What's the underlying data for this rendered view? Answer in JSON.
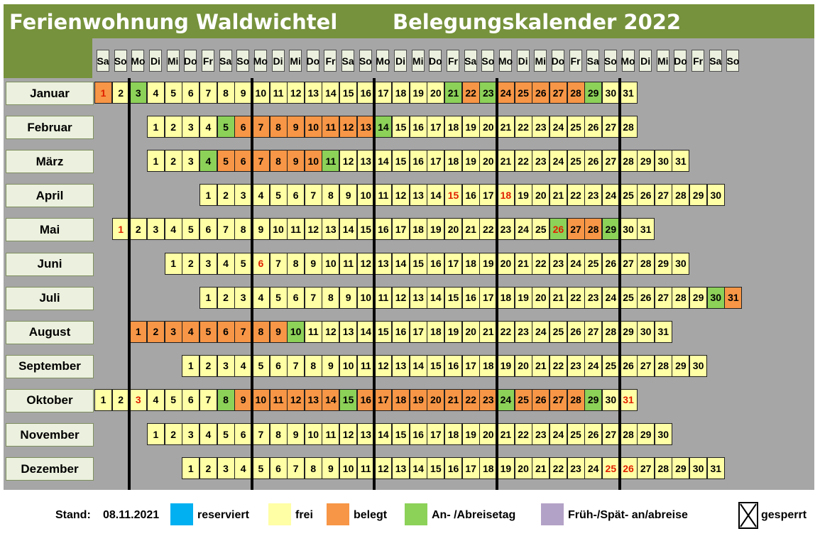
{
  "header": {
    "title_left": "Ferienwohnung Waldwichtel",
    "title_right": "Belegungskalender 2022"
  },
  "colors": {
    "header_bg": "#76923c",
    "frei": "#ffffa5",
    "belegt": "#f79646",
    "an_abreise": "#8cd158",
    "reserviert": "#00b0f0",
    "frueh_spaet": "#b3a2c7",
    "highlight_text": "#e02000"
  },
  "weekday_headers": [
    "Sa",
    "So",
    "Mo",
    "Di",
    "Mi",
    "Do",
    "Fr",
    "Sa",
    "So",
    "Mo",
    "Di",
    "Mi",
    "Do",
    "Fr",
    "Sa",
    "So",
    "Mo",
    "Di",
    "Mi",
    "Do",
    "Fr",
    "Sa",
    "So",
    "Mo",
    "Di",
    "Mi",
    "Do",
    "Fr",
    "Sa",
    "So",
    "Mo",
    "Di",
    "Mi",
    "Do",
    "Fr",
    "Sa",
    "So"
  ],
  "months": [
    {
      "name": "Januar",
      "start": 0,
      "days": 31,
      "belegt": [
        1,
        22,
        24,
        25,
        26,
        27,
        28
      ],
      "an": [
        3,
        21,
        23,
        29
      ],
      "red": [
        1
      ]
    },
    {
      "name": "Februar",
      "start": 3,
      "days": 28,
      "belegt": [
        6,
        7,
        8,
        9,
        10,
        11,
        12,
        13
      ],
      "an": [
        5,
        14
      ],
      "red": []
    },
    {
      "name": "März",
      "start": 3,
      "days": 31,
      "belegt": [
        5,
        6,
        7,
        8,
        9,
        10
      ],
      "an": [
        4,
        11
      ],
      "red": []
    },
    {
      "name": "April",
      "start": 6,
      "days": 30,
      "belegt": [],
      "an": [],
      "red": [
        15,
        18
      ]
    },
    {
      "name": "Mai",
      "start": 1,
      "days": 31,
      "belegt": [
        27,
        28
      ],
      "an": [
        26,
        29
      ],
      "red": [
        1,
        26
      ]
    },
    {
      "name": "Juni",
      "start": 4,
      "days": 30,
      "belegt": [],
      "an": [],
      "red": [
        6
      ]
    },
    {
      "name": "Juli",
      "start": 6,
      "days": 31,
      "belegt": [
        31
      ],
      "an": [
        30
      ],
      "red": []
    },
    {
      "name": "August",
      "start": 2,
      "days": 31,
      "belegt": [
        1,
        2,
        3,
        4,
        5,
        6,
        7,
        8,
        9
      ],
      "an": [
        10
      ],
      "red": []
    },
    {
      "name": "September",
      "start": 5,
      "days": 30,
      "belegt": [],
      "an": [],
      "red": []
    },
    {
      "name": "Oktober",
      "start": 0,
      "days": 31,
      "belegt": [
        9,
        10,
        11,
        12,
        13,
        14,
        16,
        17,
        18,
        19,
        20,
        21,
        22,
        23,
        25,
        26,
        27,
        28
      ],
      "an": [
        8,
        15,
        24,
        29
      ],
      "red": [
        3,
        31
      ]
    },
    {
      "name": "November",
      "start": 3,
      "days": 30,
      "belegt": [],
      "an": [],
      "red": []
    },
    {
      "name": "Dezember",
      "start": 5,
      "days": 31,
      "belegt": [],
      "an": [],
      "red": [
        25,
        26
      ]
    }
  ],
  "legend": {
    "stand_label": "Stand:",
    "stand_date": "08.11.2021",
    "reserviert": "reserviert",
    "frei": "frei",
    "belegt": "belegt",
    "an_abreise": "An- /Abreisetag",
    "frueh_spaet": "Früh-/Spät- an/abreise",
    "gesperrt": "gesperrt"
  }
}
